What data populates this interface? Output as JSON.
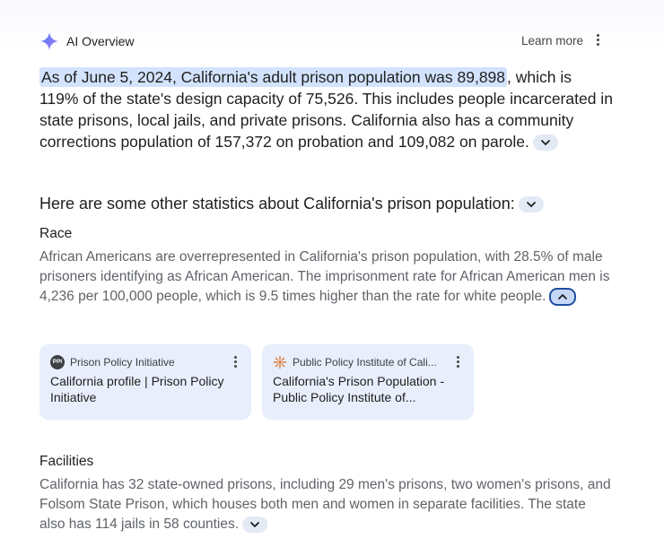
{
  "header": {
    "title": "AI Overview",
    "learn_more": "Learn more",
    "sparkle_icon": "sparkle-icon",
    "more_icon": "more-vert-icon"
  },
  "summary": {
    "highlighted": "As of June 5, 2024, California's adult prison population was 89,898",
    "rest": ", which is 119% of the state's design capacity of 75,526. This includes people incarcerated in state prisons, local jails, and private prisons. California also has a community corrections population of 157,372 on probation and 109,082 on parole."
  },
  "subheading": "Here are some other statistics about California's prison population:",
  "sections": {
    "race": {
      "title": "Race",
      "body": "African Americans are overrepresented in California's prison population, with 28.5% of male prisoners identifying as African American. The imprisonment rate for African American men is 4,236 per 100,000 people, which is 9.5 times higher than the rate for white people."
    },
    "facilities": {
      "title": "Facilities",
      "body": "California has 32 state-owned prisons, including 29 men's prisons, two women's prisons, and Folsom State Prison, which houses both men and women in separate facilities. The state also has 114 jails in 58 counties."
    }
  },
  "sources": [
    {
      "icon_text": "PPI",
      "source": "Prison Policy Initiative",
      "title": "California profile | Prison Policy Initiative"
    },
    {
      "icon_text": "",
      "source": "Public Policy Institute of Cali...",
      "title": "California's Prison Population - Public Policy Institute of..."
    }
  ],
  "colors": {
    "highlight": "#d3e3fd",
    "card_bg": "#e8eefb",
    "chip_bg": "#e3e9f5",
    "active_chip_border": "#1f4fa0"
  }
}
